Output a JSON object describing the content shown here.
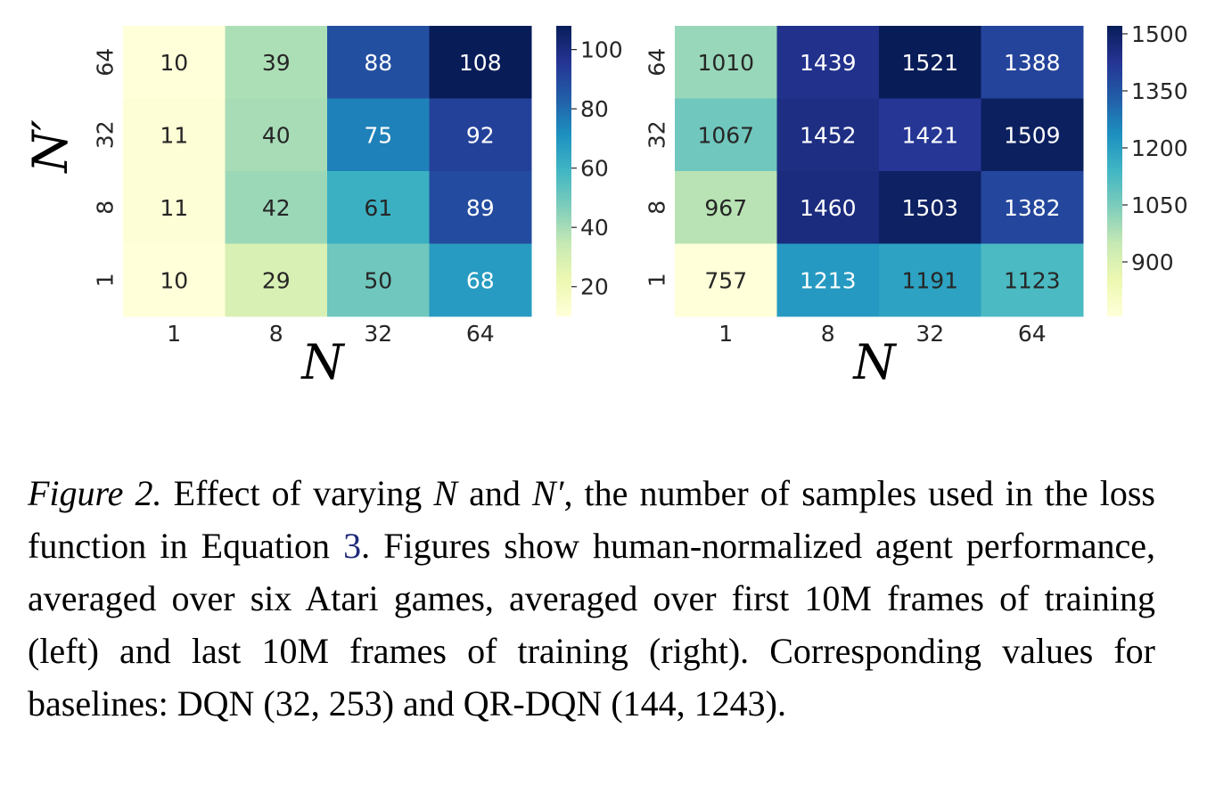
{
  "chart_data": [
    {
      "type": "heatmap",
      "x_categories": [
        "1",
        "8",
        "32",
        "64"
      ],
      "y_categories": [
        "64",
        "32",
        "8",
        "1"
      ],
      "xlabel": "N",
      "ylabel": "N′",
      "values": [
        [
          10,
          39,
          88,
          108
        ],
        [
          11,
          40,
          75,
          92
        ],
        [
          11,
          42,
          61,
          89
        ],
        [
          10,
          29,
          50,
          68
        ]
      ],
      "colorbar": {
        "min": 10,
        "max": 108,
        "ticks": [
          "100",
          "80",
          "60",
          "40",
          "20"
        ],
        "tick_values": [
          100,
          80,
          60,
          40,
          20
        ]
      },
      "colormap": "YlGnBu"
    },
    {
      "type": "heatmap",
      "x_categories": [
        "1",
        "8",
        "32",
        "64"
      ],
      "y_categories": [
        "64",
        "32",
        "8",
        "1"
      ],
      "xlabel": "N",
      "ylabel": "",
      "values": [
        [
          1010,
          1439,
          1521,
          1388
        ],
        [
          1067,
          1452,
          1421,
          1509
        ],
        [
          967,
          1460,
          1503,
          1382
        ],
        [
          757,
          1213,
          1191,
          1123
        ]
      ],
      "colorbar": {
        "min": 757,
        "max": 1521,
        "ticks": [
          "1500",
          "1350",
          "1200",
          "1050",
          "900"
        ],
        "tick_values": [
          1500,
          1350,
          1200,
          1050,
          900
        ]
      },
      "colormap": "YlGnBu"
    }
  ],
  "caption": {
    "label": "Figure 2.",
    "part1": " Effect of varying ",
    "math_n": "N",
    "part2": " and ",
    "math_nprime": "N′",
    "part3": ", the number of samples used in the loss function in Equation ",
    "ref": "3",
    "part4": ". Figures show human-normalized agent performance, averaged over six Atari games, averaged over first 10M frames of training (left) and last 10M frames of training (right). Corresponding values for baselines: DQN ",
    "math_dqn": "(32, 253)",
    "part5": " and QR-DQN ",
    "math_qrdqn": "(144, 1243)",
    "part6": "."
  }
}
